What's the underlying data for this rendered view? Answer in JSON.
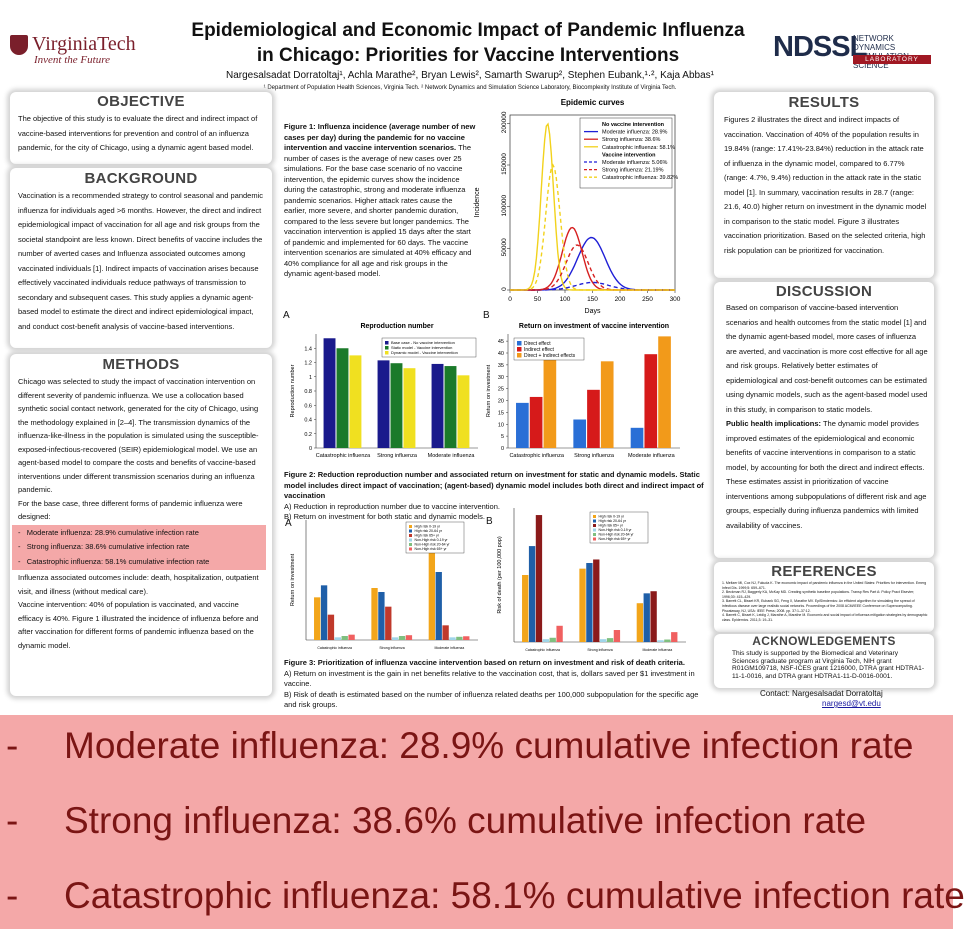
{
  "header": {
    "title_line1": "Epidemiological and Economic Impact of Pandemic Influenza",
    "title_line2": "in Chicago: Priorities for Vaccine Interventions",
    "authors": "Nargesalsadat Dorratoltaj¹, Achla Marathe², Bryan Lewis², Samarth Swarup², Stephen Eubank,¹·², Kaja Abbas¹",
    "affiliations": "¹ Department of Population Health Sciences, Virginia Tech. ² Network Dynamics and Simulation Science Laboratory, Biocomplexity Institute of Virginia Tech.",
    "vt_logo_word": "VirginiaTech",
    "vt_logo_tagline": "Invent the Future",
    "ndssl_mark": "NDSSL",
    "ndssl_text_1": "NETWORK DYNAMICS",
    "ndssl_text_2": "& SIMULATION SCIENCE",
    "ndssl_bar": "LABORATORY"
  },
  "left": {
    "objective_title": "OBJECTIVE",
    "objective_text": "The objective of this study is to evaluate the direct and indirect impact of vaccine-based interventions for prevention and control of an influenza pandemic, for the city of Chicago, using a dynamic agent based model.",
    "background_title": "BACKGROUND",
    "background_text": "Vaccination is a recommended strategy to control seasonal and pandemic influenza for individuals aged >6 months. However, the direct and indirect epidemiological impact of vaccination for all age and risk groups from the societal standpoint are less known. Direct benefits of vaccine includes the number of averted cases and Influenza associated outcomes among vaccinated individuals [1]. Indirect impacts of vaccination arises because effectively vaccinated individuals reduce pathways of transmission to secondary and subsequent cases. This study applies a dynamic agent-based model to estimate the direct and indirect epidemiological impact, and conduct cost-benefit analysis of vaccine-based interventions.",
    "methods_title": "METHODS",
    "methods_text": "Chicago was selected to study the impact of vaccination intervention on different severity of pandemic influenza. We use a collocation based synthetic social contact network, generated for the city of Chicago, using the methodology explained in [2–4]. The transmission dynamics of the influenza-like-illness in the population is simulated using the susceptible-exposed-infectious-recovered (SEIR) epidemiological model. We use an agent-based model to compare the costs and benefits of vaccine-based interventions under different transmission scenarios during an influenza pandemic.",
    "methods_lead": "For the base case, three different forms of pandemic influenza were designed:",
    "methods_bullets": [
      "Moderate influenza: 28.9% cumulative infection rate",
      "Strong influenza: 38.6% cumulative infection rate",
      "Catastrophic influenza: 58.1% cumulative infection rate"
    ],
    "methods_after_1": "Influenza associated outcomes include: death, hospitalization, outpatient visit, and illness (without medical care).",
    "methods_after_2": "Vaccine intervention: 40% of population is vaccinated, and vaccine efficacy is 40%. Figure 1 illustrated the incidence of influenza before and after vaccination for different forms of pandemic influenza based on the dynamic model."
  },
  "middle": {
    "fig1_caption_bold": "Figure 1: Influenza incidence (average number of new cases per day) during the pandemic for no vaccine intervention and vaccine intervention scenarios.",
    "fig1_caption_rest": "The number of cases is the average of new cases over 25 simulations. For the base case scenario of no vaccine intervention, the epidemic curves show the incidence during the catastrophic, strong and moderate influenza pandemic scenarios. Higher attack rates cause the earlier, more severe, and shorter pandemic duration, compared to the less severe but longer pandemics. The vaccination intervention is applied 15 days after the start of pandemic and implemented for 60 days. The vaccine intervention scenarios are simulated at 40% efficacy and 40% compliance for all age and risk groups in the dynamic agent-based model.",
    "fig2_label_a": "A",
    "fig2_label_b": "B",
    "fig2_caption_bold": "Figure 2: Reduction reproduction number and associated return on investment for static and dynamic models. Static model includes direct impact of vaccination; (agent-based) dynamic model includes both direct and indirect impact of vaccination",
    "fig2_caption_a": "A) Reduction in reproduction number due to vaccine intervention.",
    "fig2_caption_b": "B) Return on investment for both static and dynamic models.",
    "fig3_label_a": "A",
    "fig3_label_b": "B",
    "fig3_caption_bold": "Figure 3: Prioritization of influenza vaccine intervention based on return on investment and risk of death criteria.",
    "fig3_caption_a": "A) Return on investment is the gain in net benefits relative to the vaccination cost, that is, dollars saved per $1 investment in vaccine.",
    "fig3_caption_b": "B) Risk of death is estimated based on the number of influenza related deaths per 100,000 subpopulation for the specific age and risk groups."
  },
  "right": {
    "results_title": "RESULTS",
    "results_text": "Figures 2 illustrates the direct and indirect impacts of vaccination. Vaccination of 40% of the population results in 19.84% (range: 17.41%-23.84%) reduction in the attack rate of influenza in the dynamic model, compared to 6.77% (range: 4.7%, 9.4%) reduction in the attack rate in the static model [1]. In summary, vaccination results in 28.7 (range: 21.6, 40.0) higher return on investment in the dynamic model in comparison to the static model. Figure 3 illustrates vaccination prioritization. Based on the selected criteria, high risk population can be prioritized for vaccination.",
    "discussion_title": "DISCUSSION",
    "discussion_text": "Based on comparison of vaccine-based intervention scenarios and health outcomes from the static model [1] and the dynamic agent-based model, more cases of influenza are averted, and vaccination is more cost effective for all age and risk groups. Relatively better estimates of epidemiological and cost-benefit outcomes can be estimated using dynamic models, such as the agent-based model used in this study, in comparison to static models.",
    "implications_bold": "Public health implications:",
    "implications_text": "The dynamic model provides improved estimates of the epidemiological and economic benefits of vaccine interventions in comparison to a static model, by accounting for both the direct and indirect effects. These estimates assist in prioritization of vaccine interventions among subpopulations of different risk and age groups, especially during influenza pandemics with limited availability of vaccines.",
    "references_title": "REFERENCES",
    "references": [
      "1. Meltzer MI, Cox NJ, Fukuda K. The economic impact of pandemic influenza in the United States: Priorities for intervention. Emerg Infect Dis. 1999;5: 659–671.",
      "2. Beckman RJ, Baggerly KA, McKay MD. Creating synthetic baseline populations. Transp Res Part A: Policy Pract Elsevier; 1996;30: 415–429.",
      "3. Barrett CL, Bisset KR, Eubank SG, Feng X, Marathe MV. EpiSimdemics: An efficient algorithm for simulating the spread of infectious disease over large realistic social networks. Proceedings of the 2008 ACM/IEEE Conference on Supercomputing. Piscataway, NJ, USA: IEEE Press; 2008. pp. 37:1–37:12.",
      "4. Barrett C, Bisset K, Leidig J, Marathe A, Marathe M. Economic and social impact of influenza mitigation strategies by demographic class. Epidemics. 2011;3: 19–31."
    ],
    "ack_title": "ACKNOWLEDGEMENTS",
    "ack_text": "This study is supported by the Biomedical and Veterinary Sciences graduate program at Virginia Tech, NIH grant R01GM109718, NSF-ICES grant 1216000, DTRA grant HDTRA1-11-1-0016, and DTRA grant HDTRA1-11-D-0016-0001.",
    "contact_label": "Contact:  Nargesalsadat Dorratoltaj",
    "contact_email": "nargesd@vt.edu"
  },
  "zoom_panel": {
    "dash": "-",
    "items": [
      "Moderate influenza: 28.9% cumulative infection rate",
      "Strong influenza: 38.6% cumulative infection rate",
      "Catastrophic influenza: 58.1% cumulative infection rate"
    ]
  },
  "chart_data": [
    {
      "id": "fig1",
      "type": "line",
      "title": "Epidemic curves",
      "xlabel": "Days",
      "ylabel": "Incidence",
      "xlim": [
        0,
        300
      ],
      "ylim": [
        0,
        210000
      ],
      "xticks": [
        0,
        50,
        100,
        150,
        200,
        250,
        300
      ],
      "yticks": [
        0,
        50000,
        100000,
        150000,
        200000
      ],
      "legend_placement": "top-right",
      "legend_headers": [
        "No vaccine intervention",
        "Vaccine intervention"
      ],
      "series": [
        {
          "name": "Moderate influenza: 28.9%",
          "color": "#1f1fd6",
          "dash": false,
          "peak_day": 148,
          "peak": 63000,
          "spread": 25
        },
        {
          "name": "Strong influenza: 38.6%",
          "color": "#d62020",
          "dash": false,
          "peak_day": 113,
          "peak": 75000,
          "spread": 18
        },
        {
          "name": "Catastrophic influenza: 58.1%",
          "color": "#f2d21c",
          "dash": false,
          "peak_day": 68,
          "peak": 200000,
          "spread": 11
        },
        {
          "name": "Moderate influenza: 5.06%",
          "color": "#1f1fd6",
          "dash": true,
          "peak_day": 150,
          "peak": 9000,
          "spread": 30
        },
        {
          "name": "Strong influenza: 21.19%",
          "color": "#d62020",
          "dash": true,
          "peak_day": 122,
          "peak": 54000,
          "spread": 20
        },
        {
          "name": "Catastrophic influenza: 39.82%",
          "color": "#f2d21c",
          "dash": true,
          "peak_day": 78,
          "peak": 150000,
          "spread": 13
        }
      ]
    },
    {
      "id": "fig2a",
      "type": "bar",
      "title": "Reproduction number",
      "ylabel": "Reproduction number",
      "categories": [
        "Catastrophic influenza",
        "Strong influenza",
        "Moderate influenza"
      ],
      "ylim": [
        0,
        1.6
      ],
      "yticks": [
        0,
        0.2,
        0.4,
        0.6,
        0.8,
        1.0,
        1.2,
        1.4
      ],
      "legend_placement": "top-right",
      "series": [
        {
          "name": "Base case - No vaccine intervention",
          "color": "#1a1a8c",
          "values": [
            1.54,
            1.23,
            1.18
          ]
        },
        {
          "name": "Static model - Vaccine intervention",
          "color": "#1b7a2a",
          "values": [
            1.4,
            1.19,
            1.15
          ]
        },
        {
          "name": "Dynamic model - Vaccine intervention",
          "color": "#f0e020",
          "values": [
            1.3,
            1.12,
            1.02
          ]
        }
      ]
    },
    {
      "id": "fig2b",
      "type": "bar",
      "title": "Return on investment of vaccine intervention",
      "ylabel": "Return on investment",
      "categories": [
        "Catastrophic influenza",
        "Strong influenza",
        "Moderate influenza"
      ],
      "ylim": [
        0,
        48
      ],
      "yticks": [
        0,
        5,
        10,
        15,
        20,
        25,
        30,
        35,
        40,
        45
      ],
      "legend_placement": "top-left",
      "series": [
        {
          "name": "Direct effect",
          "color": "#2a6fd6",
          "values": [
            19,
            12,
            8.5
          ]
        },
        {
          "name": "Indirect effect",
          "color": "#d61a1a",
          "values": [
            21.5,
            24.5,
            39.5
          ]
        },
        {
          "name": "Direct + Indirect effects",
          "color": "#f29a1a",
          "values": [
            40.5,
            36.5,
            47
          ]
        }
      ]
    },
    {
      "id": "fig3a",
      "type": "bar",
      "ylabel": "Return on investment",
      "categories": [
        "Catastrophic influenza",
        "Strong influenza",
        "Moderate influenza"
      ],
      "ylim": [
        0,
        450
      ],
      "legend_placement": "top-right",
      "series": [
        {
          "name": "High risk 0-19 yr",
          "color": "#f2a51a",
          "values": [
            160,
            195,
            440
          ]
        },
        {
          "name": "High risk 20-64 yr",
          "color": "#1f5fa8",
          "values": [
            205,
            180,
            255
          ]
        },
        {
          "name": "High risk 65+ yr",
          "color": "#c0392b",
          "values": [
            95,
            125,
            55
          ]
        },
        {
          "name": "Non-High risk 0-19 yr",
          "color": "#9fd4e8",
          "values": [
            10,
            10,
            10
          ]
        },
        {
          "name": "Non-High risk 20-64 yr",
          "color": "#7fbf7f",
          "values": [
            15,
            15,
            12
          ]
        },
        {
          "name": "Non-High risk 65+ yr",
          "color": "#f06060",
          "values": [
            20,
            18,
            14
          ]
        }
      ]
    },
    {
      "id": "fig3b",
      "type": "bar",
      "ylabel": "Risk of death (per 100,000 pop)",
      "categories": [
        "Catastrophic influenza",
        "Strong influenza",
        "Moderate influenza"
      ],
      "ylim": [
        0,
        1900
      ],
      "legend_placement": "top-right",
      "series": [
        {
          "name": "High risk 0-19 yr",
          "color": "#f2a51a",
          "values": [
            950,
            1040,
            550
          ]
        },
        {
          "name": "High risk 20-64 yr",
          "color": "#1f5fa8",
          "values": [
            1360,
            1120,
            690
          ]
        },
        {
          "name": "High risk 65+ yr",
          "color": "#8b1a1a",
          "values": [
            1800,
            1170,
            720
          ]
        },
        {
          "name": "Non-High risk 0-19 yr",
          "color": "#9fd4e8",
          "values": [
            40,
            40,
            25
          ]
        },
        {
          "name": "Non-High risk 20-64 yr",
          "color": "#7fbf7f",
          "values": [
            60,
            55,
            35
          ]
        },
        {
          "name": "Non-High risk 65+ yr",
          "color": "#f06060",
          "values": [
            230,
            170,
            140
          ]
        }
      ]
    }
  ]
}
